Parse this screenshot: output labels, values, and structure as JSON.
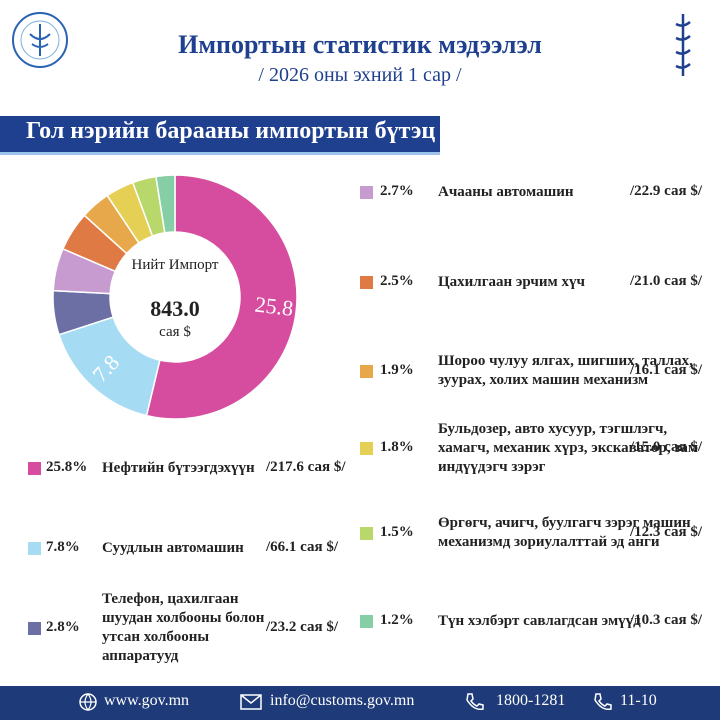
{
  "header": {
    "title": "Импортын статистик мэдээлэл",
    "subtitle": "/ 2026 оны эхний 1 сар /"
  },
  "chart_data": {
    "type": "donut",
    "title": "Гол нэрийн барааны импортын бүтэц",
    "center_label": "Нийт Импорт",
    "total": {
      "value": 843.0,
      "label": "843.0"
    },
    "total_unit": "сая $",
    "categories": [
      "Нефтийн бүтээгдэхүүн",
      "Суудлын автомашин",
      "Телефон, цахилгаан шуудан холбооны болон утсан холбооны аппаратууд",
      "Ачааны автомашин",
      "Цахилгаан эрчим хүч",
      "Шороо чулуу ялгах, шигших, таллах, зуурах, холих машин механизм",
      "Бульдозер, авто хусуур, тэгшлэгч, хамагч, механик хүрз, экскаватор, зам индүүдэгч зэрэг",
      "Өргөгч, ачигч, буулгагч зэрэг машин механизмд зориулалттай эд анги",
      "Түн хэлбэрт савлагдсан эмүүд"
    ],
    "values": [
      25.8,
      7.8,
      2.8,
      2.7,
      2.5,
      1.9,
      1.8,
      1.5,
      1.2
    ],
    "value_labels": [
      "25.8%",
      "7.8%",
      "2.8%",
      "2.7%",
      "2.5%",
      "1.9%",
      "1.8%",
      "1.5%",
      "1.2%"
    ],
    "colors": [
      "#d64c9e",
      "#a6dcf3",
      "#6b6fa3",
      "#c79ad0",
      "#e07a45",
      "#e6a84a",
      "#e5cf55",
      "#b8d86c",
      "#86cfa6"
    ],
    "amounts": [
      217.6,
      66.1,
      23.2,
      22.9,
      21.0,
      16.1,
      15.0,
      12.3,
      10.3
    ],
    "amount_labels": [
      "/217.6 сая $/",
      "/66.1 сая $/",
      "/23.2 сая $/",
      "/22.9 сая $/",
      "/21.0 сая $/",
      "/16.1 сая $/",
      "/15.0 сая $/",
      "/12.3 сая $/",
      "/10.3 сая $/"
    ]
  },
  "footer": {
    "website": "www.gov.mn",
    "email": "info@customs.gov.mn",
    "phone": "1800-1281",
    "short_phone": "11-10"
  }
}
